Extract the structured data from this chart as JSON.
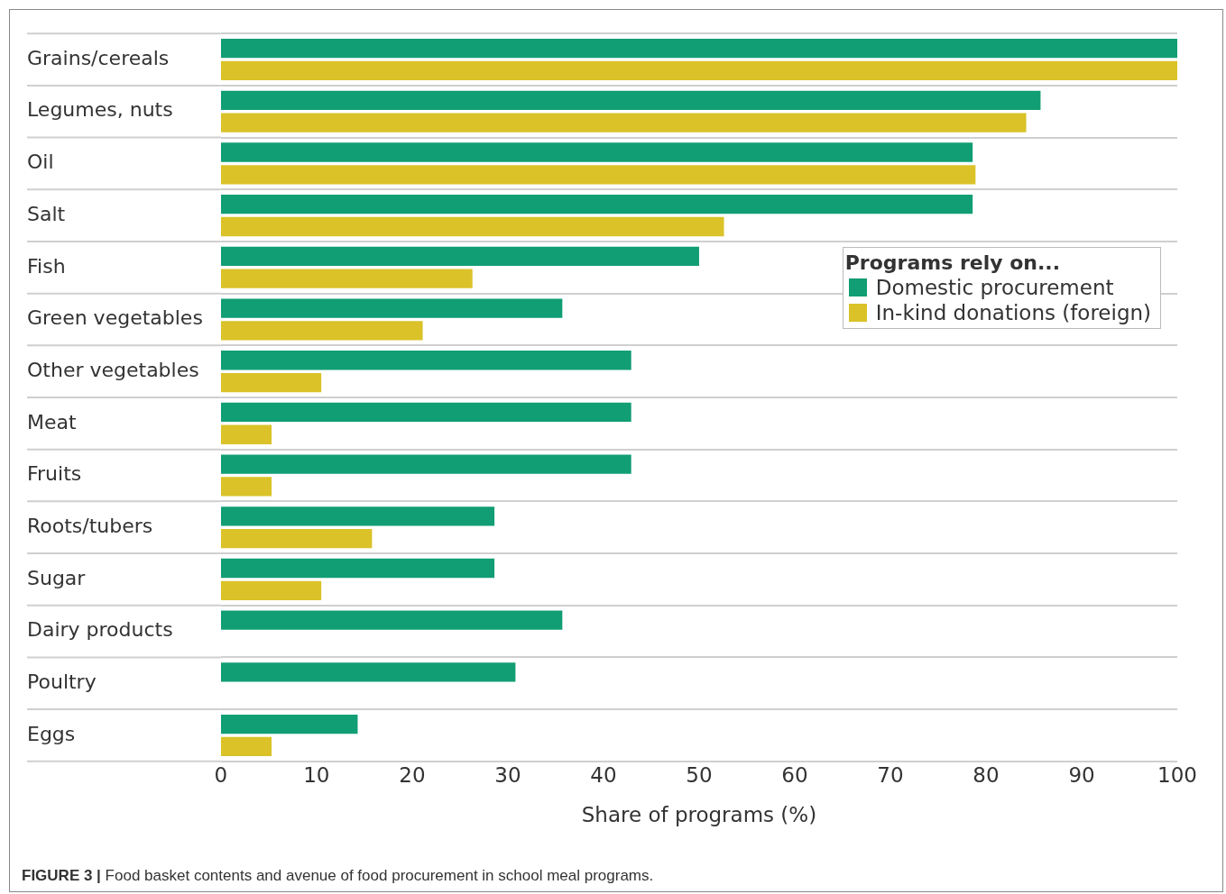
{
  "chart_data": {
    "type": "bar",
    "orientation": "horizontal",
    "xlabel": "Share of programs (%)",
    "legend_title": "Programs rely on...",
    "legend": "right",
    "grid": "y",
    "categories": [
      "Grains/cereals",
      "Legumes, nuts",
      "Oil",
      "Salt",
      "Fish",
      "Green vegetables",
      "Other vegetables",
      "Meat",
      "Fruits",
      "Roots/tubers",
      "Sugar",
      "Dairy products",
      "Poultry",
      "Eggs"
    ],
    "series": [
      {
        "name": "Domestic procurement",
        "color": "#119e74",
        "values": [
          100,
          85.7,
          78.6,
          78.6,
          50,
          35.7,
          42.9,
          42.9,
          42.9,
          28.6,
          28.6,
          35.7,
          30.8,
          14.3
        ]
      },
      {
        "name": "In-kind donations (foreign)",
        "color": "#dac228",
        "values": [
          100,
          84.2,
          78.9,
          52.6,
          26.3,
          21.1,
          10.5,
          5.3,
          5.3,
          15.8,
          10.5,
          0,
          0,
          5.3
        ]
      }
    ],
    "xlim": [
      0,
      100
    ],
    "xticks": [
      0,
      10,
      20,
      30,
      40,
      50,
      60,
      70,
      80,
      90,
      100
    ],
    "annotations": [
      "FIGURE 3 | Food basket contents and avenue of food procurement in school meal programs."
    ]
  }
}
